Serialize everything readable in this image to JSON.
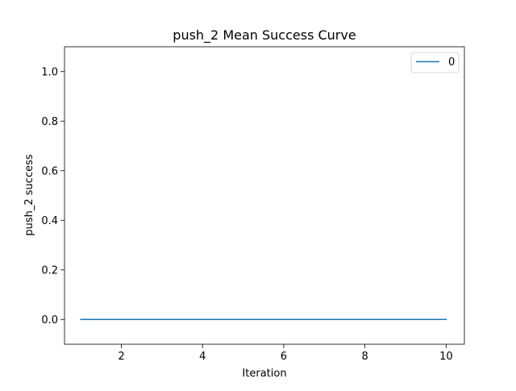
{
  "chart_data": {
    "type": "line",
    "title": "push_2 Mean Success Curve",
    "xlabel": "Iteration",
    "ylabel": "push_2 success",
    "xlim": [
      0.6,
      10.45
    ],
    "ylim": [
      -0.1,
      1.1
    ],
    "xticks": [
      2,
      4,
      6,
      8,
      10
    ],
    "xtick_labels": [
      "2",
      "4",
      "6",
      "8",
      "10"
    ],
    "yticks": [
      0.0,
      0.2,
      0.4,
      0.6,
      0.8,
      1.0
    ],
    "ytick_labels": [
      "0.0",
      "0.2",
      "0.4",
      "0.6",
      "0.8",
      "1.0"
    ],
    "grid": false,
    "legend_position": "top-right",
    "series": [
      {
        "name": "0",
        "color": "#1f77b4",
        "x": [
          1,
          2,
          3,
          4,
          5,
          6,
          7,
          8,
          9,
          10
        ],
        "y": [
          0,
          0,
          0,
          0,
          0,
          0,
          0,
          0,
          0,
          0
        ]
      }
    ]
  }
}
